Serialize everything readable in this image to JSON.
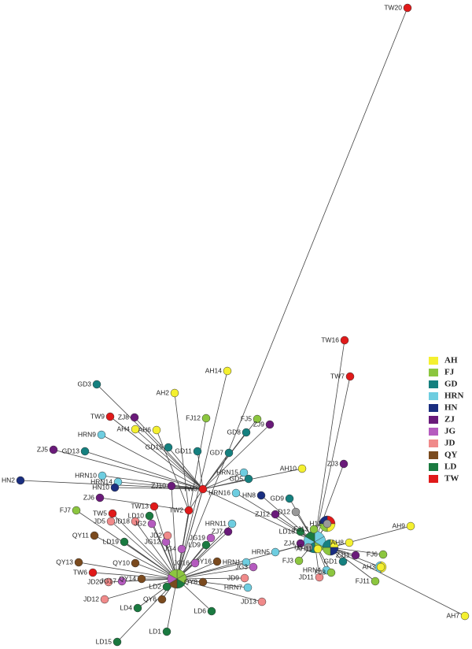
{
  "legend": [
    {
      "label": "AH",
      "color": "#f4f030"
    },
    {
      "label": "FJ",
      "color": "#8cc63f"
    },
    {
      "label": "GD",
      "color": "#15807f"
    },
    {
      "label": "HRN",
      "color": "#6ecde0"
    },
    {
      "label": "HN",
      "color": "#1a2e80"
    },
    {
      "label": "ZJ",
      "color": "#6a1a7a"
    },
    {
      "label": "JG",
      "color": "#b55bbf"
    },
    {
      "label": "JD",
      "color": "#f08a8a"
    },
    {
      "label": "QY",
      "color": "#7a4a1e"
    },
    {
      "label": "LD",
      "color": "#1a7a40"
    },
    {
      "label": "TW",
      "color": "#e01a1a"
    }
  ],
  "nodes": [
    {
      "label": "TW20"
    },
    {
      "label": "TW16"
    },
    {
      "label": "TW7"
    },
    {
      "label": "AH14"
    },
    {
      "label": "GD3"
    },
    {
      "label": "AH2"
    },
    {
      "label": "FJ12"
    },
    {
      "label": "FJ5"
    },
    {
      "label": "ZJ9"
    },
    {
      "label": "TW9"
    },
    {
      "label": "ZJ8"
    },
    {
      "label": "AH4"
    },
    {
      "label": "AH6"
    },
    {
      "label": "HRN9"
    },
    {
      "label": "GD8"
    },
    {
      "label": "ZJ5"
    },
    {
      "label": "GD13"
    },
    {
      "label": "GD15"
    },
    {
      "label": "GD11"
    },
    {
      "label": "GD7"
    },
    {
      "label": "HRN10"
    },
    {
      "label": "HRN14"
    },
    {
      "label": "HN10"
    },
    {
      "label": "ZJ10"
    },
    {
      "label": "TW3"
    },
    {
      "label": "HRN15"
    },
    {
      "label": "GD5"
    },
    {
      "label": "HRN16"
    },
    {
      "label": "HN2"
    },
    {
      "label": "ZJ6"
    },
    {
      "label": "HN8"
    },
    {
      "label": "AH10"
    },
    {
      "label": "ZJ3"
    },
    {
      "label": "TW13"
    },
    {
      "label": "TW2"
    },
    {
      "label": "GD9"
    },
    {
      "label": "FJ7"
    },
    {
      "label": "TW5"
    },
    {
      "label": "JD5"
    },
    {
      "label": "JD18"
    },
    {
      "label": "LD10"
    },
    {
      "label": "ZJ12"
    },
    {
      "label": "D12"
    },
    {
      "label": "HRN11"
    },
    {
      "label": "LD18"
    },
    {
      "label": "FJ13"
    },
    {
      "label": "AH9"
    },
    {
      "label": "QY11"
    },
    {
      "label": "LD19"
    },
    {
      "label": "ZJ4"
    },
    {
      "label": "H5"
    },
    {
      "label": "AH11"
    },
    {
      "label": "HRN5"
    },
    {
      "label": "AH8"
    },
    {
      "label": "FJ6"
    },
    {
      "label": "FJ3"
    },
    {
      "label": "GD1"
    },
    {
      "label": "ZJ11"
    },
    {
      "label": "HRN1"
    },
    {
      "label": "QY13"
    },
    {
      "label": "TW6"
    },
    {
      "label": "JD11"
    },
    {
      "label": "HRN4"
    },
    {
      "label": "FJ8"
    },
    {
      "label": "AH3"
    },
    {
      "label": "FJ11"
    },
    {
      "label": "JD9"
    },
    {
      "label": "HRN7"
    },
    {
      "label": "JD20"
    },
    {
      "label": "JG17"
    },
    {
      "label": "JD12"
    },
    {
      "label": "LD4"
    },
    {
      "label": "QY6"
    },
    {
      "label": "LD6"
    },
    {
      "label": "JD13"
    },
    {
      "label": "AH7"
    },
    {
      "label": "LD1"
    },
    {
      "label": "LD15"
    },
    {
      "label": "QY10"
    },
    {
      "label": "QY16"
    },
    {
      "label": "JG16"
    },
    {
      "label": "JG4"
    },
    {
      "label": "JG12"
    },
    {
      "label": "QY8"
    },
    {
      "label": "JG2"
    },
    {
      "label": "LD2"
    },
    {
      "label": "QY14"
    },
    {
      "label": "JG3"
    },
    {
      "label": "JD2"
    },
    {
      "label": "LD9"
    },
    {
      "label": "JG19"
    },
    {
      "label": "ZJ7"
    },
    {
      "label": "H12"
    }
  ]
}
